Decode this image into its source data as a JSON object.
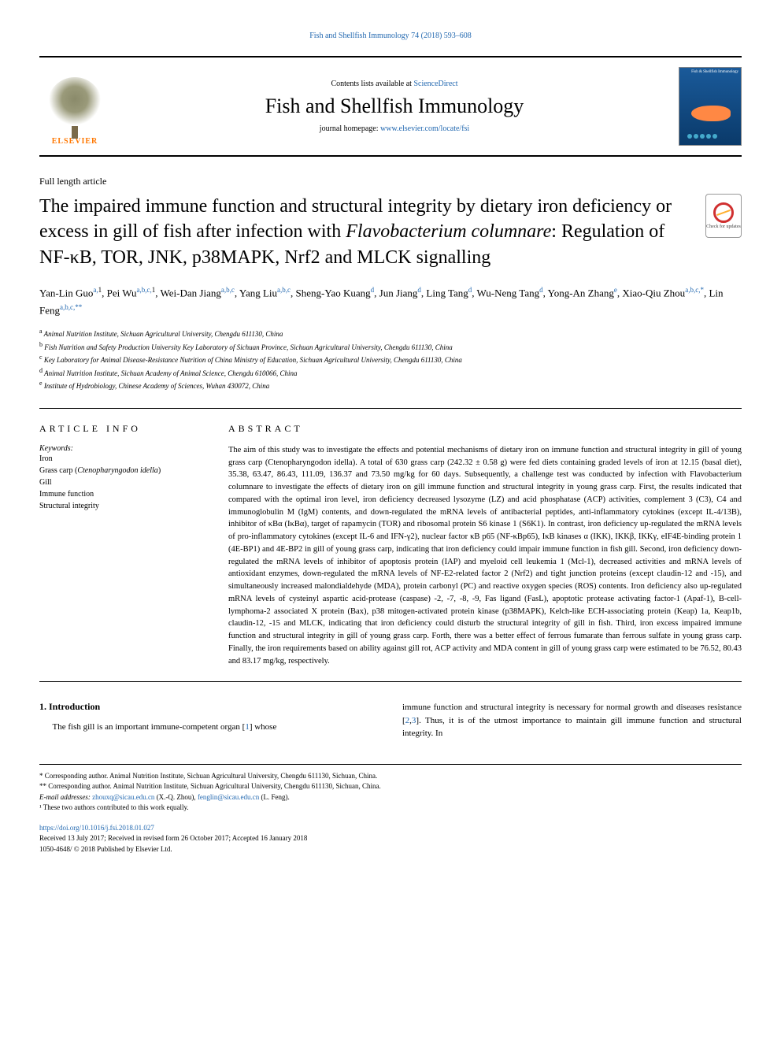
{
  "runningHeader": {
    "text": "Fish and Shellfish Immunology 74 (2018) 593–608",
    "color": "#2268b0",
    "fontsize": 10
  },
  "masthead": {
    "contentsLine": {
      "prefix": "Contents lists available at ",
      "linkText": "ScienceDirect"
    },
    "journalName": "Fish and Shellfish Immunology",
    "homepageLine": {
      "prefix": "journal homepage: ",
      "linkText": "www.elsevier.com/locate/fsi"
    },
    "publisherLogoText": "ELSEVIER",
    "coverLabel": "Fish & Shellfish\nImmunology"
  },
  "articleType": "Full length article",
  "title": "The impaired immune function and structural integrity by dietary iron deficiency or excess in gill of fish after infection with <em>Flavobacterium columnare</em>: Regulation of NF-κB, TOR, JNK, p38MAPK, Nrf2 and MLCK signalling",
  "crossmark": {
    "label": "Check for updates"
  },
  "authors": [
    {
      "name": "Yan-Lin Guo",
      "affs": "a,1"
    },
    {
      "name": "Pei Wu",
      "affs": "a,b,c,1"
    },
    {
      "name": "Wei-Dan Jiang",
      "affs": "a,b,c"
    },
    {
      "name": "Yang Liu",
      "affs": "a,b,c"
    },
    {
      "name": "Sheng-Yao Kuang",
      "affs": "d"
    },
    {
      "name": "Jun Jiang",
      "affs": "d"
    },
    {
      "name": "Ling Tang",
      "affs": "d"
    },
    {
      "name": "Wu-Neng Tang",
      "affs": "d"
    },
    {
      "name": "Yong-An Zhang",
      "affs": "e"
    },
    {
      "name": "Xiao-Qiu Zhou",
      "affs": "a,b,c,*"
    },
    {
      "name": "Lin Feng",
      "affs": "a,b,c,**"
    }
  ],
  "affiliations": [
    {
      "key": "a",
      "text": "Animal Nutrition Institute, Sichuan Agricultural University, Chengdu 611130, China"
    },
    {
      "key": "b",
      "text": "Fish Nutrition and Safety Production University Key Laboratory of Sichuan Province, Sichuan Agricultural University, Chengdu 611130, China"
    },
    {
      "key": "c",
      "text": "Key Laboratory for Animal Disease-Resistance Nutrition of China Ministry of Education, Sichuan Agricultural University, Chengdu 611130, China"
    },
    {
      "key": "d",
      "text": "Animal Nutrition Institute, Sichuan Academy of Animal Science, Chengdu 610066, China"
    },
    {
      "key": "e",
      "text": "Institute of Hydrobiology, Chinese Academy of Sciences, Wuhan 430072, China"
    }
  ],
  "articleInfo": {
    "heading": "ARTICLE INFO",
    "keywordsLabel": "Keywords:",
    "keywords": "Iron\nGrass carp (<em>Ctenopharyngodon idella</em>)\nGill\nImmune function\nStructural integrity"
  },
  "abstract": {
    "heading": "ABSTRACT",
    "text": "The aim of this study was to investigate the effects and potential mechanisms of dietary iron on immune function and structural integrity in gill of young grass carp (Ctenopharyngodon idella). A total of 630 grass carp (242.32 ± 0.58 g) were fed diets containing graded levels of iron at 12.15 (basal diet), 35.38, 63.47, 86.43, 111.09, 136.37 and 73.50 mg/kg for 60 days. Subsequently, a challenge test was conducted by infection with Flavobacterium columnare to investigate the effects of dietary iron on gill immune function and structural integrity in young grass carp. First, the results indicated that compared with the optimal iron level, iron deficiency decreased lysozyme (LZ) and acid phosphatase (ACP) activities, complement 3 (C3), C4 and immunoglobulin M (IgM) contents, and down-regulated the mRNA levels of antibacterial peptides, anti-inflammatory cytokines (except IL-4/13B), inhibitor of κBα (IκBα), target of rapamycin (TOR) and ribosomal protein S6 kinase 1 (S6K1). In contrast, iron deficiency up-regulated the mRNA levels of pro-inflammatory cytokines (except IL-6 and IFN-γ2), nuclear factor κB p65 (NF-κBp65), IκB kinases α (IKK), IKKβ, IKKγ, eIF4E-binding protein 1 (4E-BP1) and 4E-BP2 in gill of young grass carp, indicating that iron deficiency could impair immune function in fish gill. Second, iron deficiency down-regulated the mRNA levels of inhibitor of apoptosis protein (IAP) and myeloid cell leukemia 1 (Mcl-1), decreased activities and mRNA levels of antioxidant enzymes, down-regulated the mRNA levels of NF-E2-related factor 2 (Nrf2) and tight junction proteins (except claudin-12 and -15), and simultaneously increased malondialdehyde (MDA), protein carbonyl (PC) and reactive oxygen species (ROS) contents. Iron deficiency also up-regulated mRNA levels of cysteinyl aspartic acid-protease (caspase) -2, -7, -8, -9, Fas ligand (FasL), apoptotic protease activating factor-1 (Apaf-1), B-cell-lymphoma-2 associated X protein (Bax), p38 mitogen-activated protein kinase (p38MAPK), Kelch-like ECH-associating protein (Keap) 1a, Keap1b, claudin-12, -15 and MLCK, indicating that iron deficiency could disturb the structural integrity of gill in fish. Third, iron excess impaired immune function and structural integrity in gill of young grass carp. Forth, there was a better effect of ferrous fumarate than ferrous sulfate in young grass carp. Finally, the iron requirements based on ability against gill rot, ACP activity and MDA content in gill of young grass carp were estimated to be 76.52, 80.43 and 83.17 mg/kg, respectively."
  },
  "introduction": {
    "heading": "1. Introduction",
    "col1": "The fish gill is an important immune-competent organ [<a>1</a>] whose",
    "col2": "immune function and structural integrity is necessary for normal growth and diseases resistance [<a>2</a>,<a>3</a>]. Thus, it is of the utmost importance to maintain gill immune function and structural integrity. In"
  },
  "footnotes": {
    "corr1": "* Corresponding author. Animal Nutrition Institute, Sichuan Agricultural University, Chengdu 611130, Sichuan, China.",
    "corr2": "** Corresponding author. Animal Nutrition Institute, Sichuan Agricultural University, Chengdu 611130, Sichuan, China.",
    "emailLabel": "E-mail addresses:",
    "email1": "zhouxq@sicau.edu.cn",
    "email1Who": " (X.-Q. Zhou), ",
    "email2": "fenglin@sicau.edu.cn",
    "email2Who": " (L. Feng).",
    "equal": "¹ These two authors contributed to this work equally.",
    "doi": "https://doi.org/10.1016/j.fsi.2018.01.027",
    "history": "Received 13 July 2017; Received in revised form 26 October 2017; Accepted 16 January 2018",
    "copyright": "1050-4648/ © 2018 Published by Elsevier Ltd."
  },
  "colors": {
    "link": "#2268b0",
    "text": "#000000",
    "elsevierOrange": "#ff7700",
    "crossmarkRed": "#d03030",
    "crossmarkYellow": "#ffb030",
    "coverBlueTop": "#1a5a9a",
    "coverBlueBottom": "#0a3a6a"
  },
  "typography": {
    "baseFont": "Georgia, Times New Roman, serif",
    "titleSize": 24,
    "journalNameSize": 26,
    "bodySize": 11,
    "abstractSize": 10.5,
    "footnoteSize": 9
  },
  "layout": {
    "pageWidth": 992,
    "pageHeight": 1323,
    "padding": "40px 50px",
    "twoColGap": 40,
    "leftColWidth": 200
  }
}
